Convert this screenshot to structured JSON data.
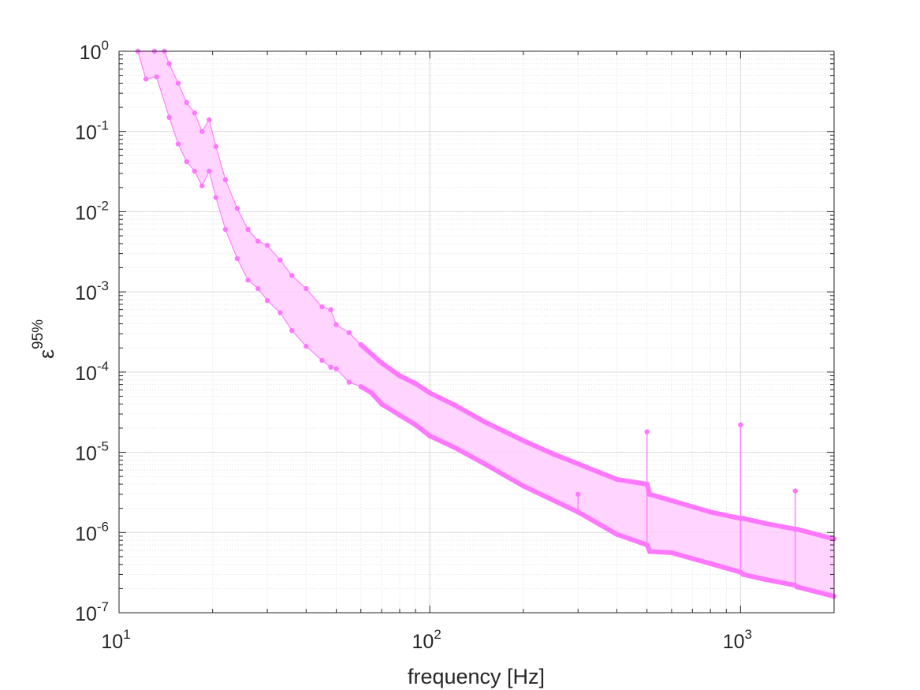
{
  "chart_data": {
    "type": "area",
    "title": "",
    "xlabel": "frequency [Hz]",
    "ylabel": {
      "base": "ε",
      "superscript": "95%"
    },
    "xscale": "log",
    "yscale": "log",
    "xlim": [
      10,
      2000
    ],
    "ylim": [
      1e-07,
      1
    ],
    "grid": "major and minor",
    "legend": "none",
    "colors": {
      "fill": "#ffccff",
      "line": "#ff80ff",
      "marker": "#ff77ff",
      "axis": "#262626",
      "grid_major": "#d9d9d9",
      "grid_minor": "#e8e8e8"
    },
    "x_ticks": [
      {
        "base": "10",
        "exp": "1",
        "value": 10
      },
      {
        "base": "10",
        "exp": "2",
        "value": 100
      },
      {
        "base": "10",
        "exp": "3",
        "value": 1000
      }
    ],
    "y_ticks": [
      {
        "base": "10",
        "exp": "0",
        "value": 1
      },
      {
        "base": "10",
        "exp": "-1",
        "value": 0.1
      },
      {
        "base": "10",
        "exp": "-2",
        "value": 0.01
      },
      {
        "base": "10",
        "exp": "-3",
        "value": 0.001
      },
      {
        "base": "10",
        "exp": "-4",
        "value": 0.0001
      },
      {
        "base": "10",
        "exp": "-5",
        "value": 1e-05
      },
      {
        "base": "10",
        "exp": "-6",
        "value": 1e-06
      },
      {
        "base": "10",
        "exp": "-7",
        "value": 1e-07
      }
    ],
    "series": [
      {
        "role": "upper bound",
        "x": [
          11.5,
          13.0,
          14.0,
          14.5,
          15.5,
          16.5,
          17.5,
          18.5,
          19.5,
          20.5,
          22,
          24,
          26,
          28,
          30,
          33,
          36,
          40,
          45,
          48,
          50,
          55,
          60,
          70,
          80,
          90,
          100,
          120,
          150,
          200,
          250,
          300,
          320,
          400,
          500,
          510,
          600,
          800,
          1000,
          1020,
          1200,
          1500,
          1520,
          2000
        ],
        "y": [
          1.0,
          1.0,
          1.0,
          0.7,
          0.4,
          0.23,
          0.17,
          0.1,
          0.14,
          0.065,
          0.025,
          0.011,
          0.006,
          0.0043,
          0.0038,
          0.0025,
          0.0016,
          0.0011,
          0.00065,
          0.0006,
          0.00039,
          0.00031,
          0.00022,
          0.00013,
          9e-05,
          7.2e-05,
          5.5e-05,
          3.9e-05,
          2.4e-05,
          1.4e-05,
          9.5e-06,
          7.2e-06,
          6.5e-06,
          4.6e-06,
          4e-06,
          3e-06,
          2.5e-06,
          1.8e-06,
          1.5e-06,
          1.5e-06,
          1.3e-06,
          1.1e-06,
          1.1e-06,
          8.3e-07
        ]
      },
      {
        "role": "lower bound",
        "x": [
          11.5,
          12.2,
          13.2,
          14.5,
          15.5,
          16.5,
          17.5,
          18.5,
          19.5,
          20.5,
          22,
          24,
          26,
          28,
          30,
          33,
          36,
          40,
          45,
          48,
          50,
          55,
          60,
          65,
          70,
          80,
          90,
          100,
          120,
          150,
          200,
          300,
          400,
          500,
          510,
          600,
          800,
          1000,
          1020,
          1200,
          1500,
          1520,
          2000
        ],
        "y": [
          1.0,
          0.45,
          0.48,
          0.15,
          0.07,
          0.042,
          0.032,
          0.021,
          0.032,
          0.015,
          0.006,
          0.0026,
          0.0014,
          0.0011,
          0.00078,
          0.00055,
          0.00033,
          0.00021,
          0.00014,
          0.000115,
          0.00011,
          7.5e-05,
          6.6e-05,
          5.5e-05,
          4e-05,
          2.9e-05,
          2.2e-05,
          1.6e-05,
          1.15e-05,
          7.2e-06,
          3.8e-06,
          1.8e-06,
          9.5e-07,
          7e-07,
          5.8e-07,
          5.6e-07,
          4.1e-07,
          3.2e-07,
          3e-07,
          2.6e-07,
          2.2e-07,
          2.1e-07,
          1.6e-07
        ]
      }
    ],
    "spikes": [
      {
        "x": 300,
        "top": 3e-06
      },
      {
        "x": 500,
        "top": 1.8e-05
      },
      {
        "x": 1000,
        "top": 2.2e-05
      },
      {
        "x": 1500,
        "top": 3.3e-06
      }
    ]
  }
}
